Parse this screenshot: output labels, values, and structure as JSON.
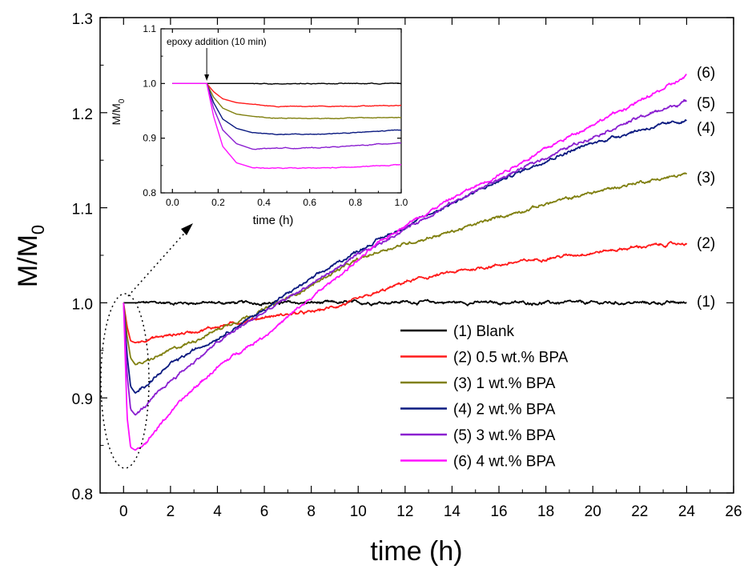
{
  "chart_data": [
    {
      "type": "line",
      "title": "",
      "xlabel": "time (h)",
      "ylabel": "M/M",
      "ylabel_sub": "0",
      "xlim": [
        -1,
        26
      ],
      "ylim": [
        0.8,
        1.3
      ],
      "xticks": [
        "0",
        "2",
        "4",
        "6",
        "8",
        "10",
        "12",
        "14",
        "16",
        "18",
        "20",
        "22",
        "24",
        "26"
      ],
      "yticks": [
        "0.8",
        "0.9",
        "1.0",
        "1.1",
        "1.2",
        "1.3"
      ],
      "grid": false,
      "legend_position": "bottom-right",
      "series": [
        {
          "name": "(1) Blank",
          "label": "(1)",
          "color": "#000000",
          "x": [
            0,
            0.2,
            0.5,
            1,
            2,
            4,
            6,
            8,
            10,
            12,
            16,
            20,
            24
          ],
          "y": [
            1.0,
            1.0,
            1.0,
            1.0,
            1.0,
            1.0,
            1.0,
            1.0,
            1.0,
            1.001,
            1.0,
            1.0,
            1.0
          ]
        },
        {
          "name": "(2) 0.5 wt.% BPA",
          "label": "(2)",
          "color": "#ff1a1a",
          "x": [
            0,
            0.15,
            0.3,
            0.5,
            1,
            2,
            3,
            4,
            5,
            6,
            7,
            8,
            9,
            10,
            11,
            12,
            14,
            16,
            18,
            20,
            22,
            24
          ],
          "y": [
            1.0,
            0.975,
            0.96,
            0.958,
            0.962,
            0.966,
            0.97,
            0.975,
            0.98,
            0.985,
            0.988,
            0.99,
            0.996,
            1.003,
            1.012,
            1.022,
            1.032,
            1.04,
            1.047,
            1.053,
            1.059,
            1.063
          ]
        },
        {
          "name": "(3) 1 wt.% BPA",
          "label": "(3)",
          "color": "#808010",
          "x": [
            0,
            0.15,
            0.3,
            0.5,
            1,
            2,
            3,
            4,
            5,
            6,
            7,
            8,
            9,
            10,
            11,
            12,
            14,
            16,
            18,
            20,
            22,
            24
          ],
          "y": [
            1.0,
            0.965,
            0.942,
            0.935,
            0.938,
            0.95,
            0.96,
            0.972,
            0.983,
            0.993,
            1.005,
            1.018,
            1.033,
            1.045,
            1.055,
            1.062,
            1.075,
            1.09,
            1.104,
            1.116,
            1.127,
            1.135
          ]
        },
        {
          "name": "(4) 2 wt.% BPA",
          "label": "(4)",
          "color": "#0a1a80",
          "x": [
            0,
            0.15,
            0.3,
            0.5,
            1,
            2,
            3,
            4,
            5,
            6,
            7,
            8,
            9,
            10,
            11,
            12,
            14,
            16,
            18,
            20,
            22,
            24
          ],
          "y": [
            1.0,
            0.945,
            0.912,
            0.905,
            0.915,
            0.935,
            0.95,
            0.963,
            0.978,
            0.993,
            1.01,
            1.025,
            1.04,
            1.055,
            1.068,
            1.08,
            1.105,
            1.128,
            1.15,
            1.168,
            1.182,
            1.192
          ]
        },
        {
          "name": "(5) 3 wt.% BPA",
          "label": "(5)",
          "color": "#8a1fd0",
          "x": [
            0,
            0.15,
            0.3,
            0.5,
            1,
            2,
            3,
            4,
            5,
            6,
            7,
            8,
            9,
            10,
            11,
            12,
            14,
            16,
            18,
            20,
            22,
            24
          ],
          "y": [
            1.0,
            0.925,
            0.888,
            0.882,
            0.893,
            0.918,
            0.938,
            0.958,
            0.975,
            0.99,
            1.005,
            1.02,
            1.035,
            1.05,
            1.063,
            1.078,
            1.105,
            1.13,
            1.153,
            1.175,
            1.195,
            1.212
          ]
        },
        {
          "name": "(6) 4 wt.% BPA",
          "label": "(6)",
          "color": "#ff10ff",
          "x": [
            0,
            0.15,
            0.3,
            0.5,
            1,
            2,
            3,
            4,
            5,
            6,
            7,
            8,
            9,
            10,
            11,
            12,
            14,
            16,
            18,
            20,
            22,
            24
          ],
          "y": [
            1.0,
            0.88,
            0.848,
            0.845,
            0.855,
            0.885,
            0.91,
            0.932,
            0.95,
            0.965,
            0.985,
            1.005,
            1.025,
            1.045,
            1.065,
            1.082,
            1.11,
            1.135,
            1.162,
            1.188,
            1.212,
            1.238
          ]
        }
      ],
      "annotations": [
        {
          "type": "dotted-ellipse",
          "around": "initial dip",
          "x": [
            0,
            1
          ],
          "y": [
            0.83,
            1.02
          ]
        },
        {
          "type": "dotted-arrow",
          "from": "ellipse",
          "to": "inset"
        }
      ]
    },
    {
      "type": "line",
      "title": "",
      "xlabel": "time (h)",
      "ylabel": "M/M",
      "ylabel_sub": "0",
      "xlim": [
        -0.05,
        1.0
      ],
      "ylim": [
        0.8,
        1.1
      ],
      "xticks": [
        "0.0",
        "0.2",
        "0.4",
        "0.6",
        "0.8",
        "1.0"
      ],
      "yticks": [
        "0.8",
        "0.9",
        "1.0",
        "1.1"
      ],
      "grid": false,
      "annotation_text": "epoxy addition (10 min)",
      "annotation_x": 0.15,
      "series": [
        {
          "color": "#000000",
          "x": [
            0,
            0.15,
            0.2,
            0.3,
            0.4,
            0.5,
            0.6,
            0.7,
            0.8,
            0.9,
            1.0
          ],
          "y": [
            1.0,
            1.0,
            1.0,
            1.0,
            1.0,
            1.0,
            1.0,
            1.0,
            1.0,
            1.0,
            1.0
          ]
        },
        {
          "color": "#ff1a1a",
          "x": [
            0,
            0.15,
            0.18,
            0.22,
            0.28,
            0.35,
            0.45,
            0.6,
            0.8,
            1.0
          ],
          "y": [
            1.0,
            1.0,
            0.985,
            0.972,
            0.965,
            0.962,
            0.958,
            0.958,
            0.959,
            0.96
          ]
        },
        {
          "color": "#808010",
          "x": [
            0,
            0.15,
            0.18,
            0.22,
            0.28,
            0.35,
            0.45,
            0.6,
            0.8,
            1.0
          ],
          "y": [
            1.0,
            1.0,
            0.975,
            0.955,
            0.944,
            0.94,
            0.937,
            0.936,
            0.937,
            0.938
          ]
        },
        {
          "color": "#0a1a80",
          "x": [
            0,
            0.15,
            0.18,
            0.22,
            0.28,
            0.35,
            0.45,
            0.6,
            0.8,
            1.0
          ],
          "y": [
            1.0,
            1.0,
            0.965,
            0.935,
            0.918,
            0.91,
            0.907,
            0.907,
            0.91,
            0.915
          ]
        },
        {
          "color": "#8a1fd0",
          "x": [
            0,
            0.15,
            0.18,
            0.22,
            0.28,
            0.35,
            0.45,
            0.6,
            0.8,
            1.0
          ],
          "y": [
            1.0,
            1.0,
            0.955,
            0.915,
            0.89,
            0.88,
            0.882,
            0.882,
            0.886,
            0.892
          ]
        },
        {
          "color": "#ff10ff",
          "x": [
            0,
            0.15,
            0.18,
            0.22,
            0.28,
            0.35,
            0.45,
            0.6,
            0.8,
            1.0
          ],
          "y": [
            1.0,
            1.0,
            0.94,
            0.885,
            0.855,
            0.846,
            0.845,
            0.845,
            0.847,
            0.852
          ]
        }
      ]
    }
  ]
}
